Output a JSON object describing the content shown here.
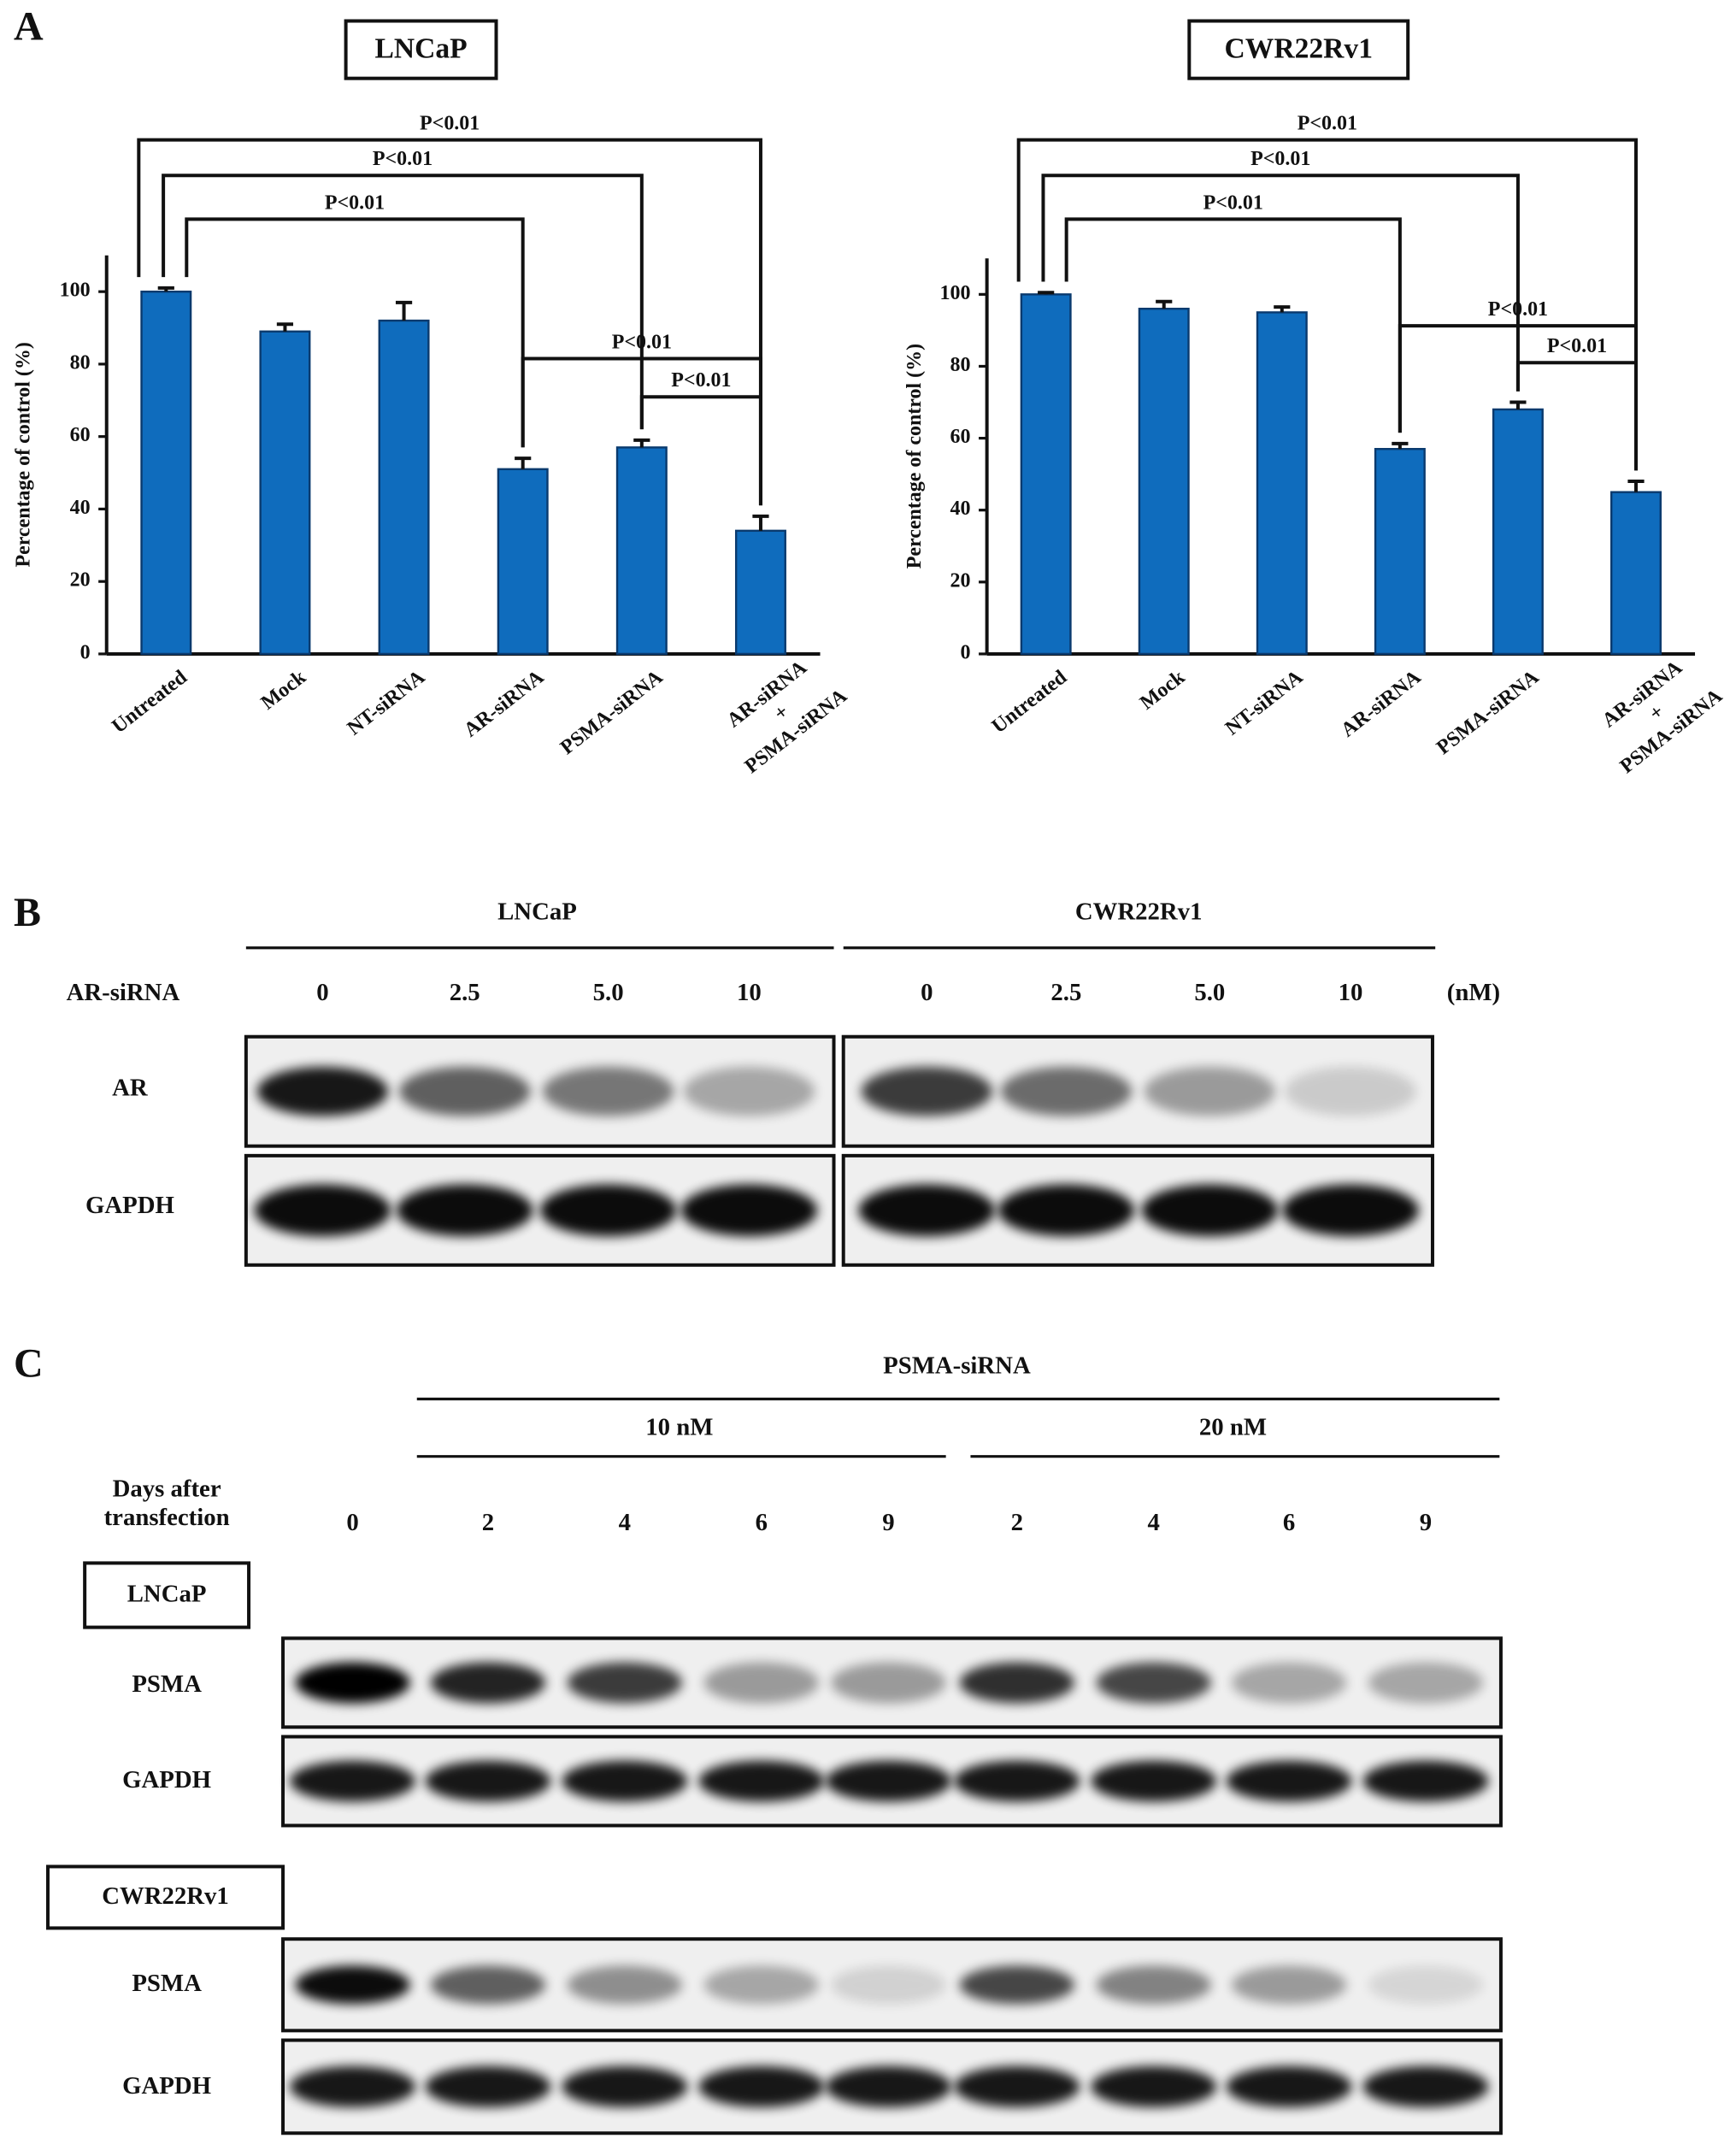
{
  "panel_labels": [
    "A",
    "B",
    "C"
  ],
  "chart_data": [
    {
      "type": "bar",
      "title": "LNCaP",
      "ylabel": "Percentage of control (%)",
      "categories": [
        "Untreated",
        "Mock",
        "NT-siRNA",
        "AR-siRNA",
        "PSMA-siRNA",
        "AR-siRNA\n+\nPSMA-siRNA"
      ],
      "values": [
        100,
        89,
        92,
        51,
        57,
        34
      ],
      "errors": [
        1,
        2,
        5,
        3,
        2,
        4
      ],
      "color": "#0f6cbd",
      "ylim": [
        0,
        110
      ],
      "yticks": [
        0,
        20,
        40,
        60,
        80,
        100
      ],
      "annotations": [
        "P<0.01",
        "P<0.01",
        "P<0.01",
        "P<0.01",
        "P<0.01"
      ]
    },
    {
      "type": "bar",
      "title": "CWR22Rv1",
      "ylabel": "Percentage of control (%)",
      "categories": [
        "Untreated",
        "Mock",
        "NT-siRNA",
        "AR-siRNA",
        "PSMA-siRNA",
        "AR-siRNA\n+\nPSMA-siRNA"
      ],
      "values": [
        100,
        96,
        95,
        57,
        68,
        45
      ],
      "errors": [
        0.5,
        2,
        1.5,
        1.5,
        2,
        3
      ],
      "color": "#0f6cbd",
      "ylim": [
        0,
        110
      ],
      "yticks": [
        0,
        20,
        40,
        60,
        80,
        100
      ],
      "annotations": [
        "P<0.01",
        "P<0.01",
        "P<0.01",
        "P<0.01",
        "P<0.01"
      ]
    }
  ],
  "panel_b": {
    "groups": [
      "LNCaP",
      "CWR22Rv1"
    ],
    "treatment": "AR-siRNA",
    "doses": [
      "0",
      "2.5",
      "5.0",
      "10",
      "0",
      "2.5",
      "5.0",
      "10"
    ],
    "unit": "(nM)",
    "rows": [
      "AR",
      "GAPDH"
    ]
  },
  "panel_c": {
    "treatment": "PSMA-siRNA",
    "concentrations": [
      "10 nM",
      "20 nM"
    ],
    "lane_heading": "Days after\ntransfection",
    "days": [
      "0",
      "2",
      "4",
      "6",
      "9",
      "2",
      "4",
      "6",
      "9"
    ],
    "cell_lines": [
      "LNCaP",
      "CWR22Rv1"
    ],
    "rows": [
      "PSMA",
      "GAPDH"
    ]
  }
}
